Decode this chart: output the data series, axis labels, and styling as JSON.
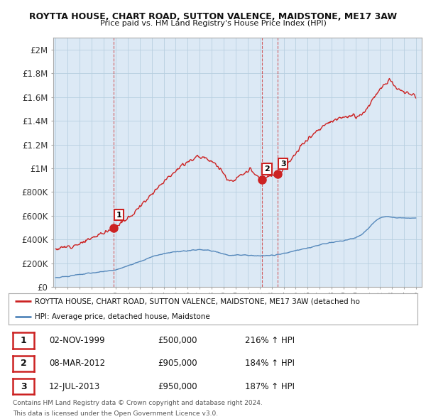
{
  "title_line1": "ROYTTA HOUSE, CHART ROAD, SUTTON VALENCE, MAIDSTONE, ME17 3AW",
  "title_line2": "Price paid vs. HM Land Registry's House Price Index (HPI)",
  "background_color": "#ffffff",
  "plot_bg_color": "#dce9f5",
  "grid_color": "#b8cfe0",
  "red_line_color": "#cc2222",
  "blue_line_color": "#5588bb",
  "purchases": [
    {
      "date_num": 1999.84,
      "price": 500000,
      "label": "1"
    },
    {
      "date_num": 2012.18,
      "price": 905000,
      "label": "2"
    },
    {
      "date_num": 2013.52,
      "price": 950000,
      "label": "3"
    }
  ],
  "table_rows": [
    {
      "num": "1",
      "date": "02-NOV-1999",
      "price": "£500,000",
      "hpi": "216% ↑ HPI"
    },
    {
      "num": "2",
      "date": "08-MAR-2012",
      "price": "£905,000",
      "hpi": "184% ↑ HPI"
    },
    {
      "num": "3",
      "date": "12-JUL-2013",
      "price": "£950,000",
      "hpi": "187% ↑ HPI"
    }
  ],
  "legend_red": "ROYTTA HOUSE, CHART ROAD, SUTTON VALENCE, MAIDSTONE, ME17 3AW (detached ho",
  "legend_blue": "HPI: Average price, detached house, Maidstone",
  "footnote1": "Contains HM Land Registry data © Crown copyright and database right 2024.",
  "footnote2": "This data is licensed under the Open Government Licence v3.0.",
  "ylim_max": 2100000,
  "yticks": [
    0,
    200000,
    400000,
    600000,
    800000,
    1000000,
    1200000,
    1400000,
    1600000,
    1800000,
    2000000
  ],
  "ytick_labels": [
    "£0",
    "£200K",
    "£400K",
    "£600K",
    "£800K",
    "£1M",
    "£1.2M",
    "£1.4M",
    "£1.6M",
    "£1.8M",
    "£2M"
  ],
  "xtick_years": [
    1995,
    1996,
    1997,
    1998,
    1999,
    2000,
    2001,
    2002,
    2003,
    2004,
    2005,
    2006,
    2007,
    2008,
    2009,
    2010,
    2011,
    2012,
    2013,
    2014,
    2015,
    2016,
    2017,
    2018,
    2019,
    2020,
    2021,
    2022,
    2023,
    2024,
    2025
  ]
}
